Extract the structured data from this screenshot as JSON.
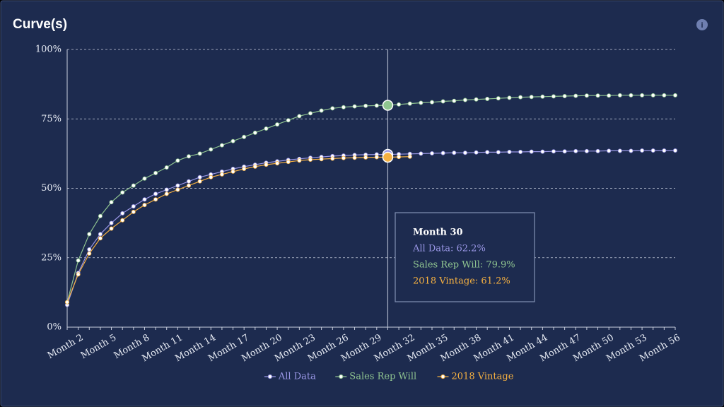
{
  "header": {
    "title": "Curve(s)"
  },
  "chart_data": {
    "type": "line",
    "categories": [
      null,
      "Month 2",
      null,
      null,
      "Month 5",
      null,
      null,
      "Month 8",
      null,
      null,
      "Month 11",
      null,
      null,
      "Month 14",
      null,
      null,
      "Month 17",
      null,
      null,
      "Month 20",
      null,
      null,
      "Month 23",
      null,
      null,
      "Month 26",
      null,
      null,
      "Month 29",
      null,
      null,
      "Month 32",
      null,
      null,
      "Month 35",
      null,
      null,
      "Month 38",
      null,
      null,
      "Month 41",
      null,
      null,
      "Month 44",
      null,
      null,
      "Month 47",
      null,
      null,
      "Month 50",
      null,
      null,
      "Month 53",
      null,
      null,
      "Month 56"
    ],
    "series": [
      {
        "name": "All Data",
        "color": "#9a97e6",
        "values": [
          8,
          19.5,
          28,
          33.5,
          37.5,
          41,
          43.5,
          46,
          48,
          49.5,
          51,
          52.5,
          54,
          55,
          56,
          57,
          57.8,
          58.5,
          59.2,
          59.7,
          60.2,
          60.6,
          61,
          61.3,
          61.6,
          61.8,
          62,
          62.1,
          62.2,
          62.2,
          62.3,
          62.4,
          62.5,
          62.6,
          62.7,
          62.8,
          62.8,
          62.9,
          63,
          63,
          63.1,
          63.1,
          63.2,
          63.2,
          63.3,
          63.3,
          63.4,
          63.4,
          63.4,
          63.5,
          63.5,
          63.5,
          63.6,
          63.6,
          63.6,
          63.6
        ]
      },
      {
        "name": "Sales Rep Will",
        "color": "#8fc490",
        "values": [
          9,
          24,
          33.5,
          40,
          45,
          48.5,
          51,
          53.5,
          55.5,
          57.5,
          60,
          61.5,
          62.5,
          64,
          65.5,
          67,
          68.5,
          70,
          71.5,
          73,
          74.5,
          76,
          77,
          78,
          78.8,
          79.2,
          79.5,
          79.7,
          79.8,
          79.9,
          80.2,
          80.5,
          80.8,
          81,
          81.3,
          81.5,
          81.8,
          82,
          82.2,
          82.4,
          82.6,
          82.8,
          82.9,
          83,
          83.1,
          83.2,
          83.3,
          83.4,
          83.4,
          83.4,
          83.5,
          83.5,
          83.5,
          83.5,
          83.5,
          83.5
        ]
      },
      {
        "name": "2018 Vintage",
        "color": "#f5b041",
        "values": [
          9,
          19,
          26.5,
          32,
          35.5,
          38.5,
          41.5,
          44,
          46,
          48,
          49.5,
          51,
          52.5,
          54,
          55,
          56,
          57,
          57.8,
          58.5,
          59,
          59.5,
          60,
          60.3,
          60.5,
          60.7,
          60.9,
          61,
          61.1,
          61.2,
          61.2,
          61.3,
          61.4,
          null,
          null,
          null,
          null,
          null,
          null,
          null,
          null,
          null,
          null,
          null,
          null,
          null,
          null,
          null,
          null,
          null,
          null,
          null,
          null,
          null,
          null,
          null,
          null
        ]
      }
    ],
    "ylim": [
      0,
      100
    ],
    "yticks": [
      {
        "value": 0,
        "label": "0%"
      },
      {
        "value": 25,
        "label": "25%"
      },
      {
        "value": 50,
        "label": "50%"
      },
      {
        "value": 75,
        "label": "75%"
      },
      {
        "value": 100,
        "label": "100%"
      }
    ],
    "grid": true,
    "legend": "bottom",
    "tooltip": {
      "index": 29,
      "title": "Month 30",
      "lines": [
        "All Data: 62.2%",
        "Sales Rep Will: 79.9%",
        "2018 Vintage: 61.2%"
      ]
    }
  }
}
